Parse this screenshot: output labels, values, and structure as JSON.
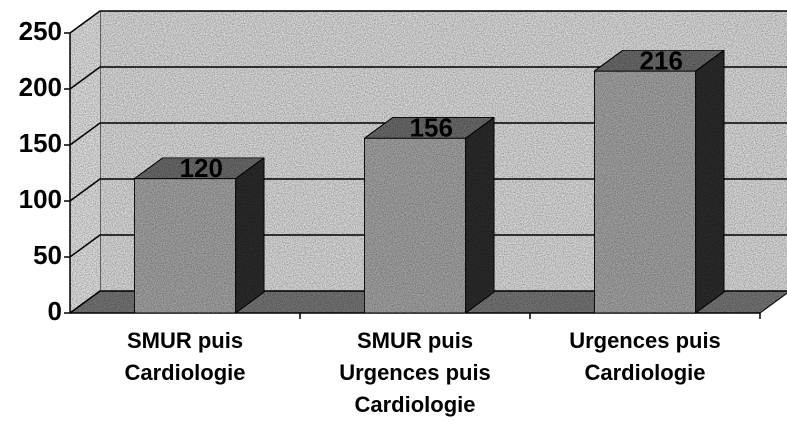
{
  "chart_data": {
    "type": "bar3d",
    "categories": [
      "SMUR puis Cardiologie",
      "SMUR puis Urgences puis Cardiologie",
      "Urgences puis Cardiologie"
    ],
    "values": [
      120,
      156,
      216
    ],
    "color": "#a9a9a9",
    "ylim": [
      0,
      250
    ],
    "yticks": [
      0,
      50,
      100,
      150,
      200,
      250
    ],
    "grid": true
  }
}
